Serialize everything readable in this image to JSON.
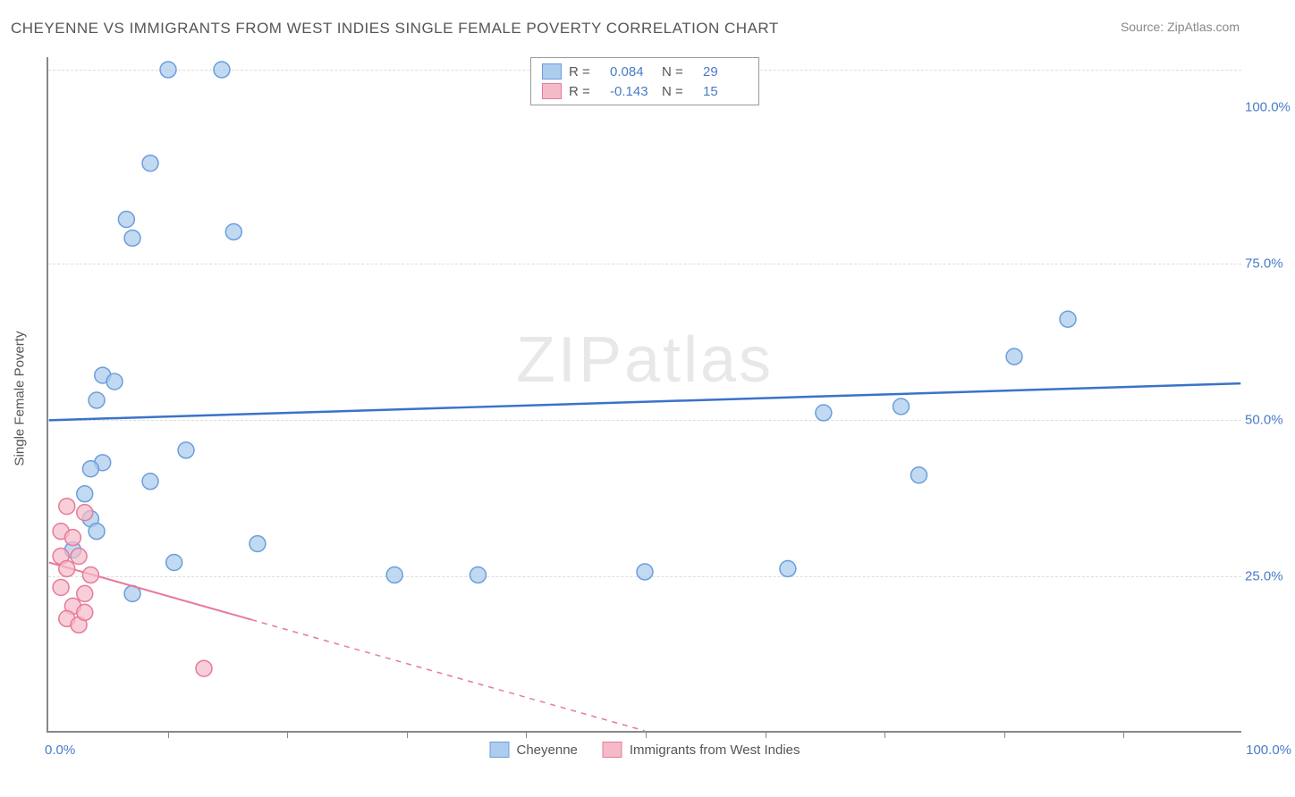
{
  "title": "CHEYENNE VS IMMIGRANTS FROM WEST INDIES SINGLE FEMALE POVERTY CORRELATION CHART",
  "source_label": "Source:",
  "source_name": "ZipAtlas.com",
  "y_axis_label": "Single Female Poverty",
  "watermark": "ZIPatlas",
  "chart": {
    "type": "scatter",
    "background_color": "#ffffff",
    "grid_color": "#dddddd",
    "axis_color": "#888888",
    "tick_label_color": "#4a7bc8",
    "xlim": [
      0,
      100
    ],
    "ylim": [
      0,
      108
    ],
    "x_ticks_minor_step": 10,
    "y_grid": [
      25,
      50,
      75,
      106
    ],
    "y_tick_labels": [
      {
        "v": 25,
        "label": "25.0%"
      },
      {
        "v": 50,
        "label": "50.0%"
      },
      {
        "v": 75,
        "label": "75.0%"
      },
      {
        "v": 100,
        "label": "100.0%"
      }
    ],
    "x_tick_labels": {
      "left": "0.0%",
      "right": "100.0%"
    },
    "series": [
      {
        "name": "Cheyenne",
        "fill": "#aeccee",
        "stroke": "#6a9edc",
        "marker_radius": 9,
        "fill_opacity": 0.75,
        "R_label": "R  =",
        "R": "0.084",
        "N_label": "N  =",
        "N": "29",
        "regression": {
          "x1": 0,
          "y1": 49.8,
          "x2": 100,
          "y2": 55.7,
          "color": "#3a73c8",
          "width": 2.5,
          "solid_until_x": 100
        },
        "points": [
          {
            "x": 10.0,
            "y": 106.0
          },
          {
            "x": 14.5,
            "y": 106.0
          },
          {
            "x": 8.5,
            "y": 91.0
          },
          {
            "x": 6.5,
            "y": 82.0
          },
          {
            "x": 7.0,
            "y": 79.0
          },
          {
            "x": 15.5,
            "y": 80.0
          },
          {
            "x": 4.5,
            "y": 57.0
          },
          {
            "x": 5.5,
            "y": 56.0
          },
          {
            "x": 4.0,
            "y": 53.0
          },
          {
            "x": 11.5,
            "y": 45.0
          },
          {
            "x": 4.5,
            "y": 43.0
          },
          {
            "x": 3.5,
            "y": 42.0
          },
          {
            "x": 8.5,
            "y": 40.0
          },
          {
            "x": 3.0,
            "y": 38.0
          },
          {
            "x": 3.5,
            "y": 34.0
          },
          {
            "x": 4.0,
            "y": 32.0
          },
          {
            "x": 17.5,
            "y": 30.0
          },
          {
            "x": 10.5,
            "y": 27.0
          },
          {
            "x": 7.0,
            "y": 22.0
          },
          {
            "x": 2.0,
            "y": 29.0
          },
          {
            "x": 29.0,
            "y": 25.0
          },
          {
            "x": 36.0,
            "y": 25.0
          },
          {
            "x": 50.0,
            "y": 25.5
          },
          {
            "x": 62.0,
            "y": 26.0
          },
          {
            "x": 71.5,
            "y": 52.0
          },
          {
            "x": 73.0,
            "y": 41.0
          },
          {
            "x": 65.0,
            "y": 51.0
          },
          {
            "x": 81.0,
            "y": 60.0
          },
          {
            "x": 85.5,
            "y": 66.0
          }
        ]
      },
      {
        "name": "Immigrants from West Indies",
        "fill": "#f5bac8",
        "stroke": "#e77a98",
        "marker_radius": 9,
        "fill_opacity": 0.7,
        "R_label": "R  =",
        "R": "-0.143",
        "N_label": "N  =",
        "N": "15",
        "regression": {
          "x1": 0,
          "y1": 27.0,
          "x2": 50,
          "y2": 0,
          "color": "#e77a98",
          "width": 2,
          "solid_until_x": 17
        },
        "points": [
          {
            "x": 1.5,
            "y": 36.0
          },
          {
            "x": 3.0,
            "y": 35.0
          },
          {
            "x": 1.0,
            "y": 32.0
          },
          {
            "x": 2.0,
            "y": 31.0
          },
          {
            "x": 1.0,
            "y": 28.0
          },
          {
            "x": 2.5,
            "y": 28.0
          },
          {
            "x": 1.5,
            "y": 26.0
          },
          {
            "x": 3.5,
            "y": 25.0
          },
          {
            "x": 1.0,
            "y": 23.0
          },
          {
            "x": 3.0,
            "y": 22.0
          },
          {
            "x": 2.0,
            "y": 20.0
          },
          {
            "x": 1.5,
            "y": 18.0
          },
          {
            "x": 2.5,
            "y": 17.0
          },
          {
            "x": 3.0,
            "y": 19.0
          },
          {
            "x": 13.0,
            "y": 10.0
          }
        ]
      }
    ]
  }
}
